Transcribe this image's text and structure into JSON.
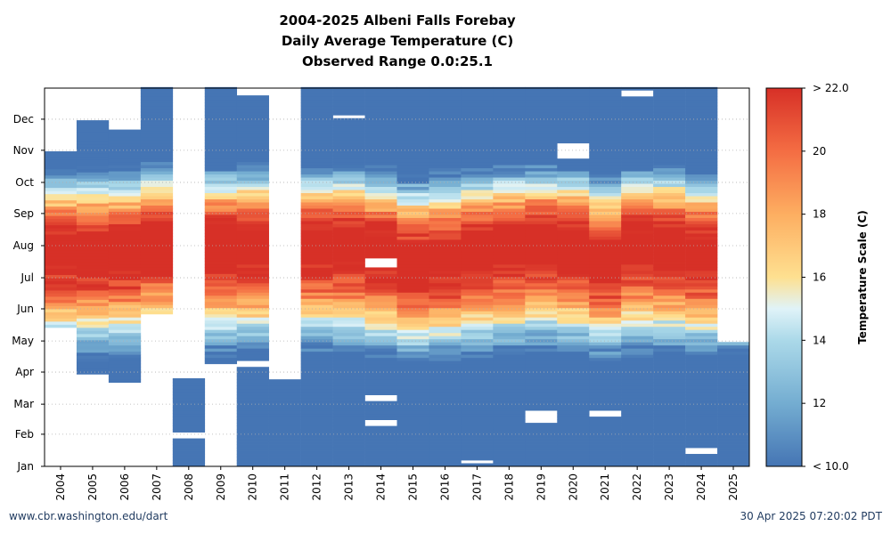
{
  "chart_data": {
    "type": "heatmap",
    "title": "2004-2025 Albeni Falls Forebay",
    "subtitle": "Daily Average Temperature (C)",
    "range_label": "Observed Range 0.0:25.1",
    "x_categories": [
      "2004",
      "2005",
      "2006",
      "2007",
      "2008",
      "2009",
      "2010",
      "2011",
      "2012",
      "2013",
      "2014",
      "2015",
      "2016",
      "2017",
      "2018",
      "2019",
      "2020",
      "2021",
      "2022",
      "2023",
      "2024",
      "2025"
    ],
    "y_ticks": [
      "Jan",
      "Feb",
      "Mar",
      "Apr",
      "May",
      "Jun",
      "Jul",
      "Aug",
      "Sep",
      "Oct",
      "Nov",
      "Dec"
    ],
    "colorbar": {
      "label": "Temperature Scale (C)",
      "min": 10.0,
      "max": 22.0,
      "ticks": [
        {
          "value": 10,
          "label": "< 10.0"
        },
        {
          "value": 12,
          "label": "12"
        },
        {
          "value": 14,
          "label": "14"
        },
        {
          "value": 16,
          "label": "16"
        },
        {
          "value": 18,
          "label": "18"
        },
        {
          "value": 20,
          "label": "20"
        },
        {
          "value": 22,
          "label": "> 22.0"
        }
      ]
    },
    "grid": "dotted-horizontal",
    "coverage_day_of_year": [
      {
        "year": "2004",
        "start": 135,
        "end": 304
      },
      {
        "year": "2005",
        "start": 90,
        "end": 334
      },
      {
        "year": "2006",
        "start": 82,
        "end": 325
      },
      {
        "year": "2007",
        "start": 148,
        "end": 366
      },
      {
        "year": "2008",
        "start": 1,
        "end": 85
      },
      {
        "year": "2009",
        "start": 100,
        "end": 366
      },
      {
        "year": "2010",
        "start": 1,
        "end": 358
      },
      {
        "year": "2011",
        "start": 1,
        "end": 366
      },
      {
        "year": "2012",
        "start": 1,
        "end": 366
      },
      {
        "year": "2013",
        "start": 1,
        "end": 366
      },
      {
        "year": "2014",
        "start": 1,
        "end": 366
      },
      {
        "year": "2015",
        "start": 1,
        "end": 366
      },
      {
        "year": "2016",
        "start": 1,
        "end": 366
      },
      {
        "year": "2017",
        "start": 1,
        "end": 366
      },
      {
        "year": "2018",
        "start": 1,
        "end": 366
      },
      {
        "year": "2019",
        "start": 1,
        "end": 366
      },
      {
        "year": "2020",
        "start": 1,
        "end": 366
      },
      {
        "year": "2021",
        "start": 1,
        "end": 366
      },
      {
        "year": "2022",
        "start": 1,
        "end": 366
      },
      {
        "year": "2023",
        "start": 1,
        "end": 366
      },
      {
        "year": "2024",
        "start": 1,
        "end": 366
      },
      {
        "year": "2025",
        "start": 1,
        "end": 120
      }
    ],
    "peak_day_of_year": [
      213,
      213,
      213,
      225,
      213,
      220,
      220,
      225,
      220,
      220,
      213,
      200,
      205,
      213,
      220,
      225,
      220,
      205,
      220,
      220,
      213,
      213
    ],
    "missing_spans_day_of_year": [
      {
        "year": "2008",
        "start": 30,
        "end": 32
      },
      {
        "year": "2010",
        "start": 98,
        "end": 100
      },
      {
        "year": "2011",
        "start": 86,
        "end": 366
      },
      {
        "year": "2011",
        "start": 313,
        "end": 313
      },
      {
        "year": "2013",
        "start": 337,
        "end": 339
      },
      {
        "year": "2014",
        "start": 40,
        "end": 45
      },
      {
        "year": "2014",
        "start": 66,
        "end": 68
      },
      {
        "year": "2014",
        "start": 194,
        "end": 199
      },
      {
        "year": "2017",
        "start": 4,
        "end": 5
      },
      {
        "year": "2019",
        "start": 44,
        "end": 52
      },
      {
        "year": "2020",
        "start": 300,
        "end": 304
      },
      {
        "year": "2020",
        "start": 309,
        "end": 310
      },
      {
        "year": "2021",
        "start": 49,
        "end": 54
      },
      {
        "year": "2022",
        "start": 359,
        "end": 363
      },
      {
        "year": "2024",
        "start": 13,
        "end": 18
      }
    ]
  },
  "footer": {
    "source": "www.cbr.washington.edu/dart",
    "timestamp": "30 Apr 2025 07:20:02 PDT"
  }
}
